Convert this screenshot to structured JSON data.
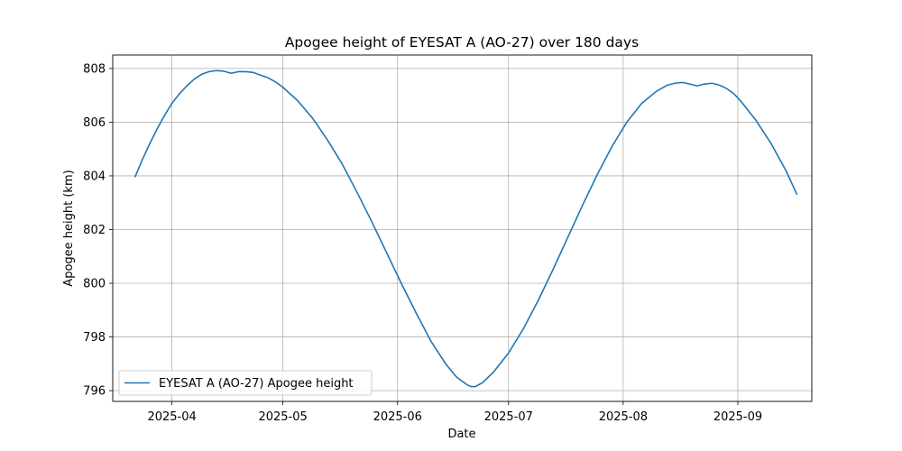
{
  "chart_data": {
    "type": "line",
    "title": "Apogee height of EYESAT A (AO-27) over 180 days",
    "xlabel": "Date",
    "ylabel": "Apogee height (km)",
    "xlim": [
      "2025-03-16",
      "2025-09-21"
    ],
    "ylim": [
      795.6,
      808.5
    ],
    "grid": true,
    "legend_location": "lower left",
    "x_ticks": [
      "2025-04",
      "2025-05",
      "2025-06",
      "2025-07",
      "2025-08",
      "2025-09"
    ],
    "x_tick_dates": [
      "2025-04-01",
      "2025-05-01",
      "2025-06-01",
      "2025-07-01",
      "2025-08-01",
      "2025-09-01"
    ],
    "y_ticks": [
      796,
      798,
      800,
      802,
      804,
      806,
      808
    ],
    "series": [
      {
        "name": "EYESAT A (AO-27) Apogee height",
        "color": "#1f77b4",
        "x": [
          "2025-03-22",
          "2025-03-24",
          "2025-03-26",
          "2025-03-28",
          "2025-03-30",
          "2025-04-01",
          "2025-04-03",
          "2025-04-05",
          "2025-04-07",
          "2025-04-09",
          "2025-04-11",
          "2025-04-13",
          "2025-04-15",
          "2025-04-17",
          "2025-04-19",
          "2025-04-21",
          "2025-04-23",
          "2025-04-25",
          "2025-04-27",
          "2025-04-29",
          "2025-05-01",
          "2025-05-05",
          "2025-05-09",
          "2025-05-13",
          "2025-05-17",
          "2025-05-21",
          "2025-05-25",
          "2025-05-29",
          "2025-06-02",
          "2025-06-06",
          "2025-06-10",
          "2025-06-14",
          "2025-06-17",
          "2025-06-20",
          "2025-06-21",
          "2025-06-22",
          "2025-06-24",
          "2025-06-27",
          "2025-07-01",
          "2025-07-05",
          "2025-07-09",
          "2025-07-13",
          "2025-07-17",
          "2025-07-21",
          "2025-07-25",
          "2025-07-29",
          "2025-08-02",
          "2025-08-06",
          "2025-08-10",
          "2025-08-13",
          "2025-08-15",
          "2025-08-17",
          "2025-08-19",
          "2025-08-21",
          "2025-08-23",
          "2025-08-25",
          "2025-08-27",
          "2025-08-29",
          "2025-08-31",
          "2025-09-02",
          "2025-09-06",
          "2025-09-10",
          "2025-09-14",
          "2025-09-17"
        ],
        "y": [
          803.95,
          804.6,
          805.2,
          805.75,
          806.25,
          806.7,
          807.05,
          807.35,
          807.6,
          807.78,
          807.88,
          807.92,
          807.9,
          807.82,
          807.88,
          807.88,
          807.85,
          807.75,
          807.65,
          807.5,
          807.3,
          806.8,
          806.15,
          805.35,
          804.45,
          803.4,
          802.3,
          801.15,
          800.0,
          798.9,
          797.85,
          797.0,
          796.5,
          796.2,
          796.15,
          796.15,
          796.3,
          796.7,
          797.4,
          798.3,
          799.35,
          800.5,
          801.7,
          802.9,
          804.05,
          805.1,
          806.0,
          806.7,
          807.15,
          807.38,
          807.45,
          807.48,
          807.42,
          807.35,
          807.42,
          807.45,
          807.38,
          807.25,
          807.05,
          806.75,
          806.05,
          805.2,
          804.2,
          803.3
        ]
      }
    ]
  }
}
